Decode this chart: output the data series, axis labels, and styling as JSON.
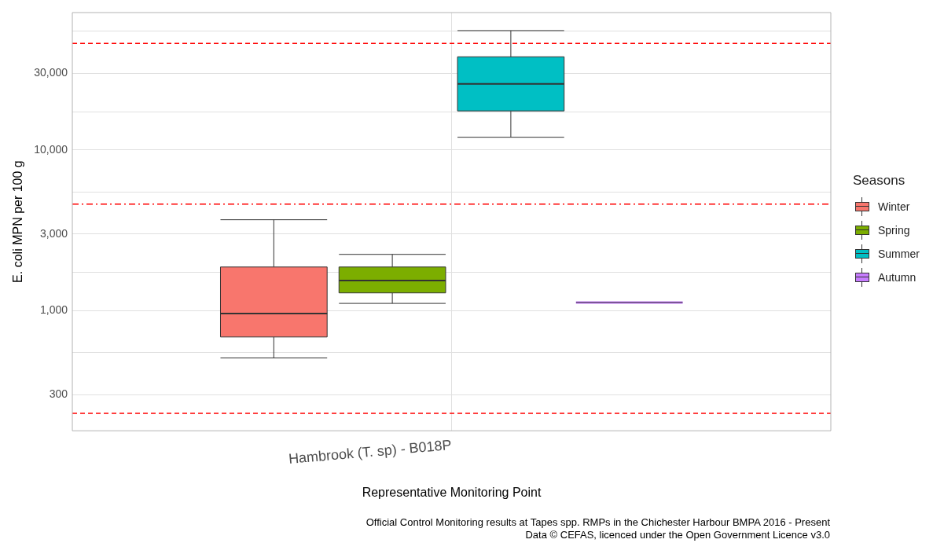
{
  "chart_data": {
    "type": "box",
    "xlabel": "Representative Monitoring Point",
    "ylabel": "E. coli MPN per 100 g",
    "legend_title": "Seasons",
    "legend": "right",
    "grid": true,
    "log": "y",
    "categories": [
      "Hambrook (T. sp) - B018P"
    ],
    "ylim": [
      179,
      71600
    ],
    "yticks": [
      {
        "value": 300,
        "label": "300"
      },
      {
        "value": 548,
        "label": null
      },
      {
        "value": 1000,
        "label": "1,000"
      },
      {
        "value": 1732,
        "label": null
      },
      {
        "value": 3000,
        "label": "3,000"
      },
      {
        "value": 5477,
        "label": null
      },
      {
        "value": 10000,
        "label": "10,000"
      },
      {
        "value": 17320,
        "label": null
      },
      {
        "value": 30000,
        "label": "30,000"
      },
      {
        "value": 54772,
        "label": null
      }
    ],
    "series": [
      {
        "name": "Winter",
        "color": "#f8766d",
        "boxes": [
          {
            "low": 508,
            "q1": 686,
            "median": 960,
            "q3": 1870,
            "high": 3680
          }
        ]
      },
      {
        "name": "Spring",
        "color": "#7cae00",
        "boxes": [
          {
            "low": 1110,
            "q1": 1290,
            "median": 1540,
            "q3": 1870,
            "high": 2240
          }
        ]
      },
      {
        "name": "Summer",
        "color": "#00bfc4",
        "boxes": [
          {
            "low": 12000,
            "q1": 17500,
            "median": 25800,
            "q3": 38000,
            "high": 55300
          }
        ]
      },
      {
        "name": "Autumn",
        "color": "#c77cff",
        "boxes": [
          {
            "low": 1125,
            "q1": 1125,
            "median": 1125,
            "q3": 1125,
            "high": 1125
          }
        ]
      }
    ],
    "ref_lines": [
      {
        "axis": "y",
        "value": 46000,
        "color": "#ff0000",
        "line_style": "dashed"
      },
      {
        "axis": "y",
        "value": 4600,
        "color": "#ff0000",
        "line_style": "dashdot"
      },
      {
        "axis": "y",
        "value": 230,
        "color": "#ff0000",
        "line_style": "dashed"
      }
    ],
    "annotations": [
      "Official Control Monitoring results at Tapes spp. RMPs in the Chichester Harbour BMPA 2016 - Present",
      "Data © CEFAS, licenced under the Open Government Licence v3.0"
    ]
  }
}
